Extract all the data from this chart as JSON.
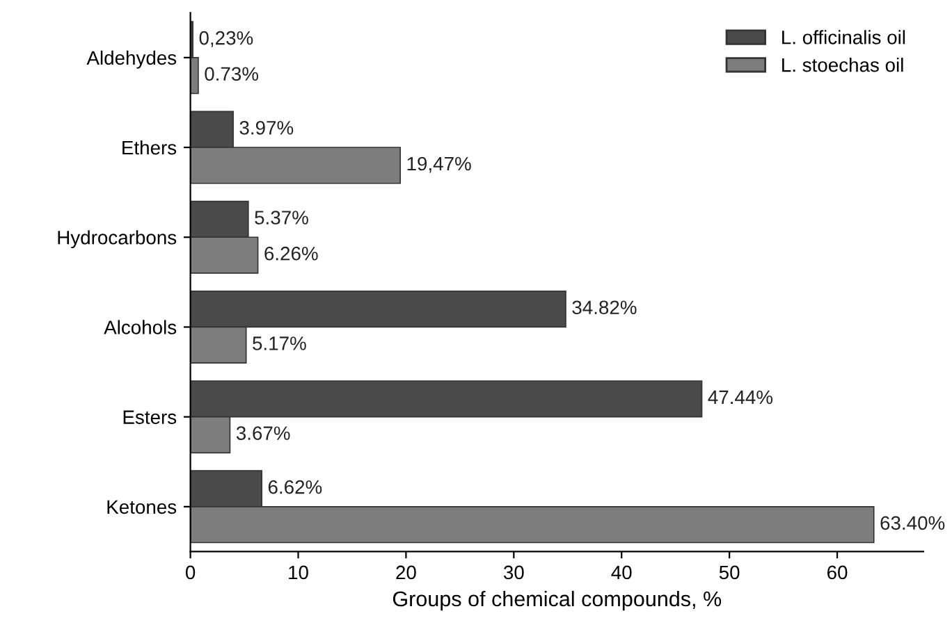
{
  "chart_data": {
    "type": "bar",
    "orientation": "horizontal",
    "xlabel": "Groups of chemical compounds, %",
    "categories": [
      "Aldehydes",
      "Ethers",
      "Hydrocarbons",
      "Alcohols",
      "Esters",
      "Ketones"
    ],
    "series": [
      {
        "name": "L. officinalis oil",
        "color": "#4a4a4a",
        "values": [
          0.23,
          3.97,
          5.37,
          34.82,
          47.44,
          6.62
        ],
        "value_labels": [
          "0,23%",
          "3.97%",
          "5.37%",
          "34.82%",
          "47.44%",
          "6.62%"
        ]
      },
      {
        "name": "L. stoechas oil",
        "color": "#7d7d7d",
        "values": [
          0.73,
          19.47,
          6.26,
          5.17,
          3.67,
          63.4
        ],
        "value_labels": [
          "0.73%",
          "19,47%",
          "6.26%",
          "5.17%",
          "3.67%",
          "63.40%"
        ]
      }
    ],
    "xlim": [
      0,
      68
    ],
    "xticks": [
      0,
      10,
      20,
      30,
      40,
      50,
      60
    ],
    "grid": false,
    "legend": "top right"
  }
}
